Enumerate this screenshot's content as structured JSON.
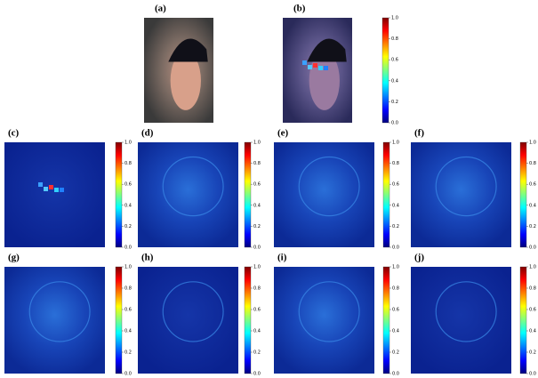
{
  "panels": [
    {
      "label": "(a)"
    },
    {
      "label": "(b)"
    },
    {
      "label": "(c)"
    },
    {
      "label": "(d)"
    },
    {
      "label": "(e)"
    },
    {
      "label": "(f)"
    },
    {
      "label": "(g)"
    },
    {
      "label": "(h)"
    },
    {
      "label": "(i)"
    },
    {
      "label": "(j)"
    }
  ],
  "colorbar_ticks": [
    "0.0",
    "0.2",
    "0.4",
    "0.6",
    "0.8",
    "1.0"
  ]
}
